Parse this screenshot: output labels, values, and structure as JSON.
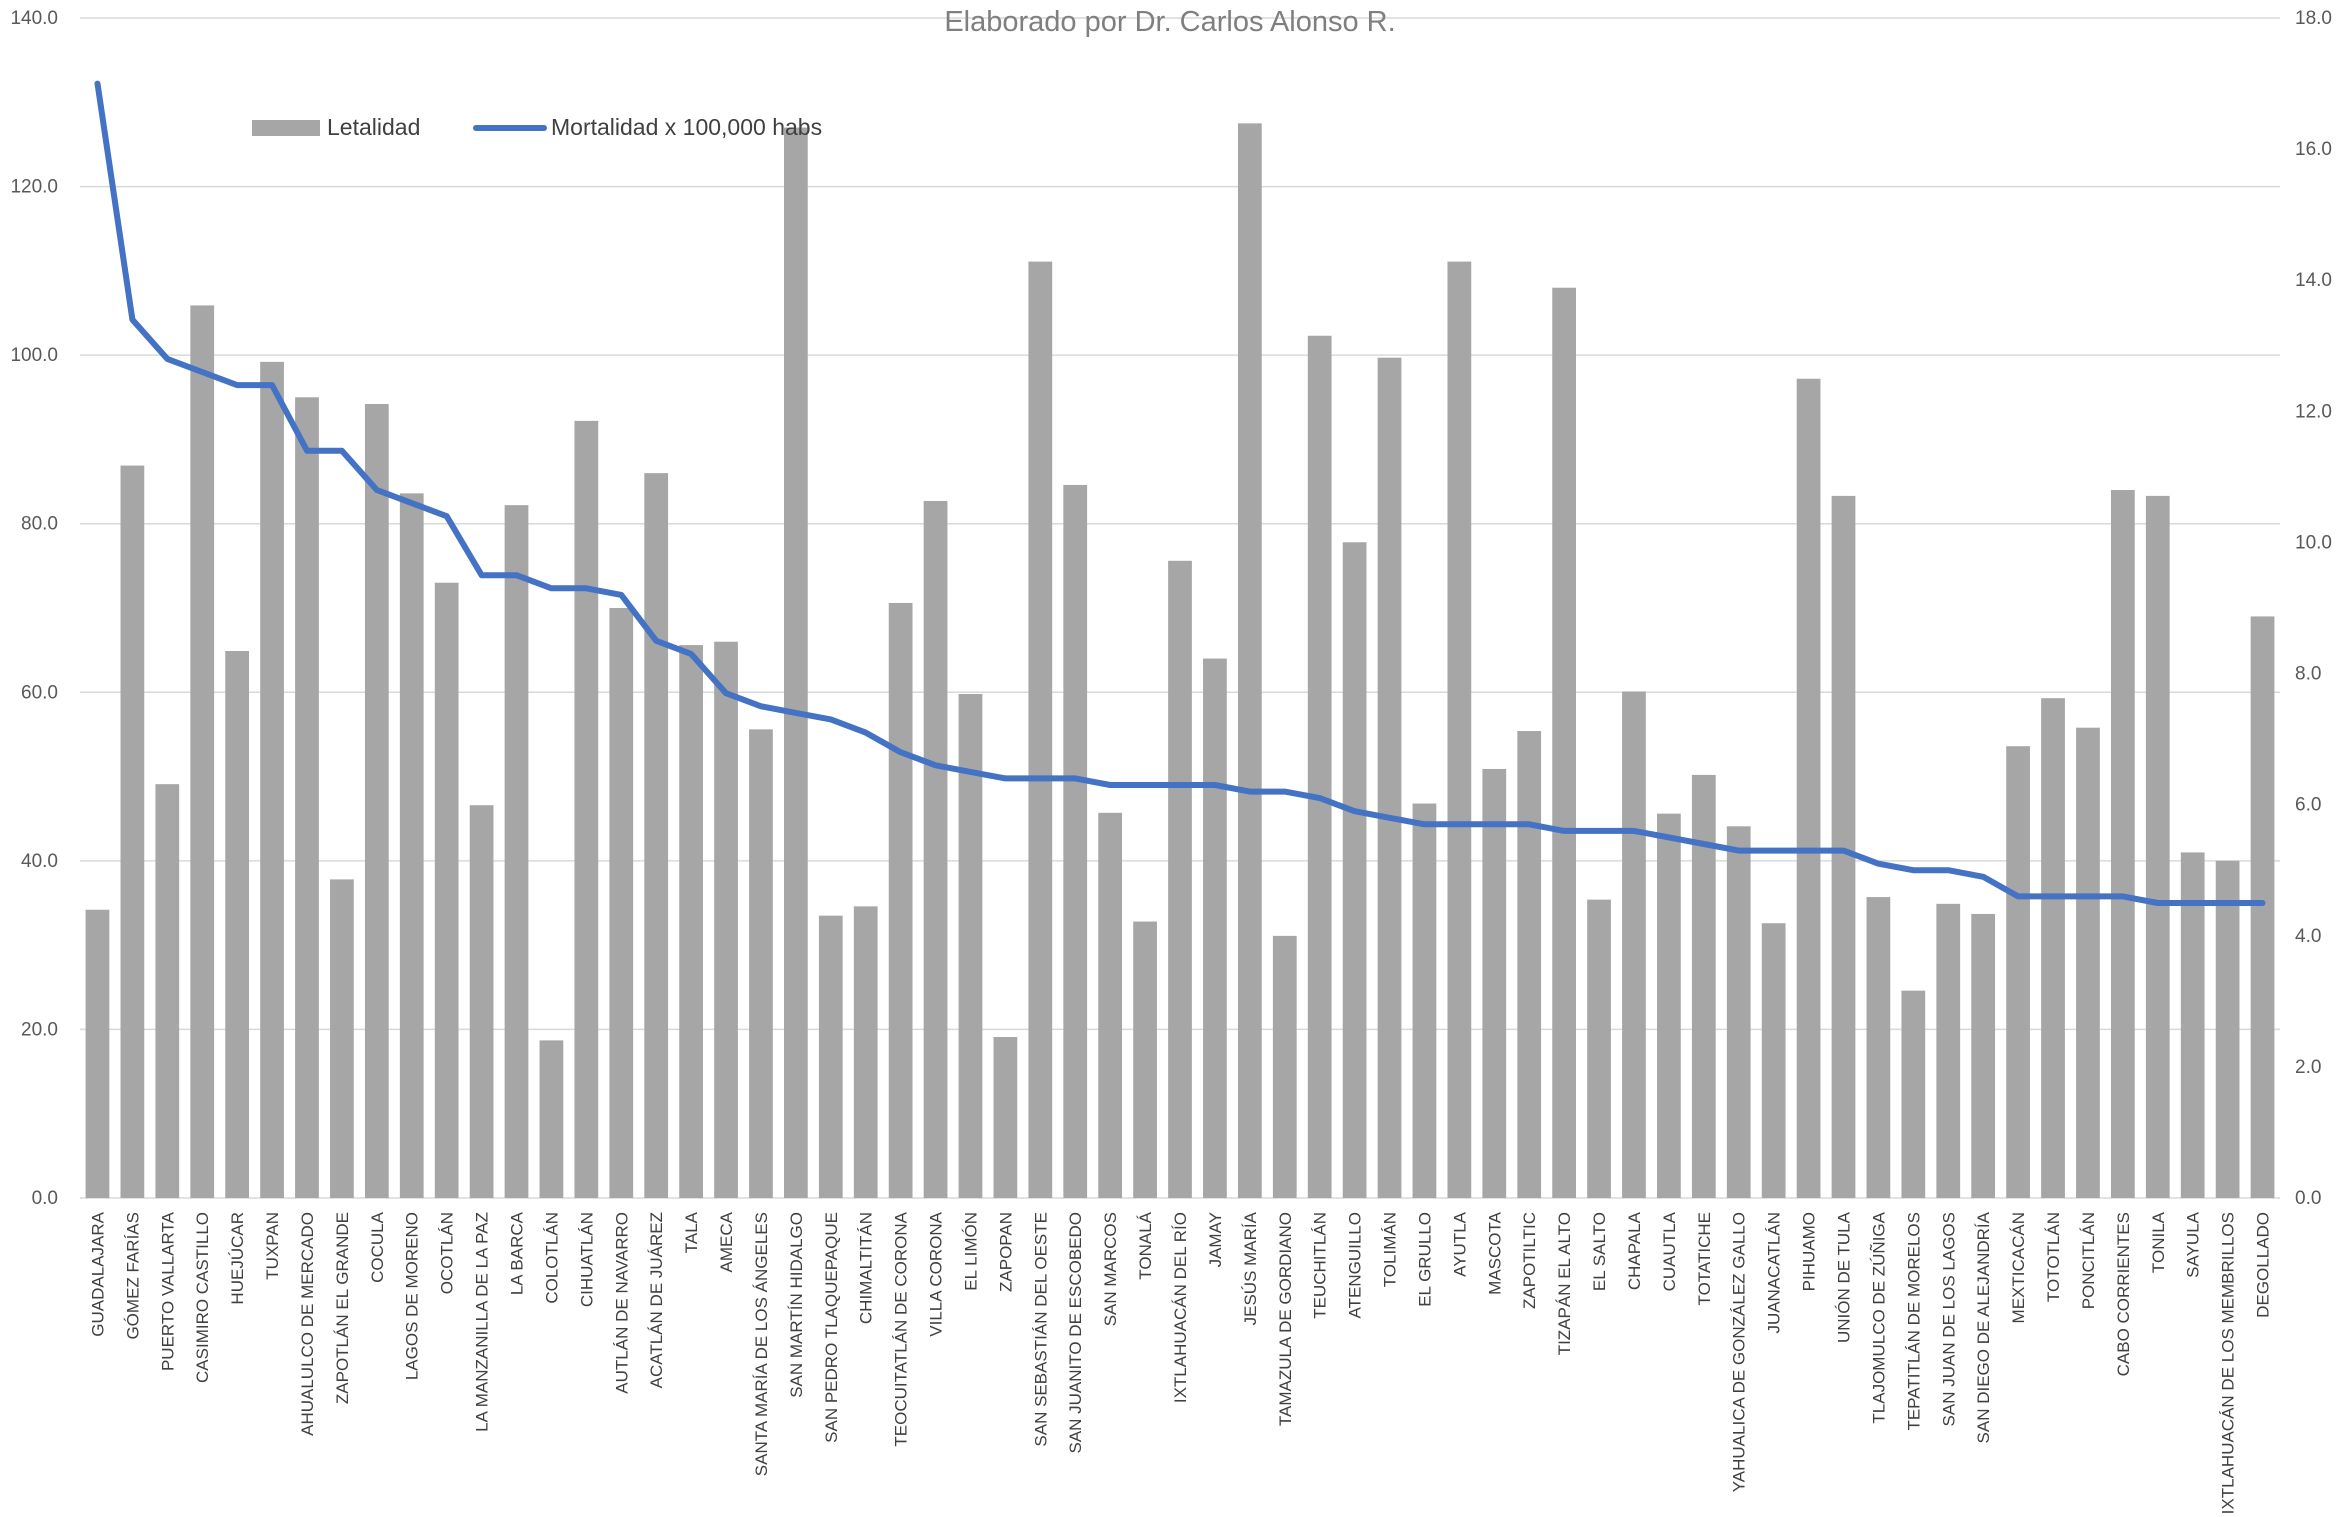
{
  "chart_data": {
    "type": "bar",
    "title": "Elaborado por Dr. Carlos Alonso R.",
    "legend_position": "top-left",
    "grid": true,
    "colors": {
      "bars": "#a6a6a6",
      "line": "#4472c4",
      "grid": "#d9d9d9",
      "text": "#595959"
    },
    "y_left": {
      "min": 0,
      "max": 140,
      "ticks": [
        "0.0",
        "20.0",
        "40.0",
        "60.0",
        "80.0",
        "100.0",
        "120.0",
        "140.0"
      ]
    },
    "y_right": {
      "min": 0,
      "max": 18,
      "ticks": [
        "0.0",
        "2.0",
        "4.0",
        "6.0",
        "8.0",
        "10.0",
        "12.0",
        "14.0",
        "16.0",
        "18.0"
      ]
    },
    "categories": [
      "GUADALAJARA",
      "GÓMEZ FARÍAS",
      "PUERTO VALLARTA",
      "CASIMIRO CASTILLO",
      "HUEJÚCAR",
      "TUXPAN",
      "AHUALULCO DE MERCADO",
      "ZAPOTLÁN EL GRANDE",
      "COCULA",
      "LAGOS DE MORENO",
      "OCOTLÁN",
      "LA MANZANILLA DE LA PAZ",
      "LA BARCA",
      "COLOTLÁN",
      "CIHUATLÁN",
      "AUTLÁN DE NAVARRO",
      "ACATLÁN DE JUÁREZ",
      "TALA",
      "AMECA",
      "SANTA MARÍA DE LOS ÁNGELES",
      "SAN MARTÍN HIDALGO",
      "SAN PEDRO TLAQUEPAQUE",
      "CHIMALTITÁN",
      "TEOCUITATLÁN DE CORONA",
      "VILLA CORONA",
      "EL LIMÓN",
      "ZAPOPAN",
      "SAN SEBASTIÁN DEL OESTE",
      "SAN JUANITO DE ESCOBEDO",
      "SAN MARCOS",
      "TONALÁ",
      "IXTLAHUACÁN DEL RÍO",
      "JAMAY",
      "JESÚS MARÍA",
      "TAMAZULA DE GORDIANO",
      "TEUCHITLÁN",
      "ATENGUILLO",
      "TOLIMÁN",
      "EL GRULLO",
      "AYUTLA",
      "MASCOTA",
      "ZAPOTILTIC",
      "TIZAPÁN EL ALTO",
      "EL SALTO",
      "CHAPALA",
      "CUAUTLA",
      "TOTATICHE",
      "YAHUALICA DE GONZÁLEZ GALLO",
      "JUANACATLÁN",
      "PIHUAMO",
      "UNIÓN DE TULA",
      "TLAJOMULCO DE ZÚÑIGA",
      "TEPATITLÁN DE MORELOS",
      "SAN JUAN DE LOS LAGOS",
      "SAN DIEGO DE ALEJANDRÍA",
      "MEXTICACÁN",
      "TOTOTLÁN",
      "PONCITLÁN",
      "CABO CORRIENTES",
      "TONILA",
      "SAYULA",
      "IXTLAHUACÁN DE LOS MEMBRILLOS",
      "DEGOLLADO"
    ],
    "series": [
      {
        "name": "Letalidad",
        "type": "bar",
        "axis": "left",
        "values": [
          34.2,
          86.9,
          49.1,
          105.9,
          64.9,
          99.2,
          95.0,
          37.8,
          94.2,
          83.6,
          73.0,
          46.6,
          82.2,
          18.7,
          92.2,
          70.0,
          86.0,
          65.6,
          66.0,
          55.6,
          127.0,
          33.5,
          34.6,
          70.6,
          82.7,
          59.8,
          19.1,
          111.1,
          84.6,
          45.7,
          32.8,
          75.6,
          64.0,
          127.5,
          31.1,
          102.3,
          77.8,
          99.7,
          46.8,
          111.1,
          50.9,
          55.4,
          108.0,
          35.4,
          60.1,
          45.6,
          50.2,
          44.1,
          32.6,
          97.2,
          83.3,
          35.7,
          24.6,
          34.9,
          33.7,
          53.6,
          59.3,
          55.8,
          84.0,
          83.3,
          41.0,
          40.0,
          69.0
        ]
      },
      {
        "name": "Mortalidad x 100,000 habs",
        "type": "line",
        "axis": "right",
        "values": [
          17.0,
          13.4,
          12.8,
          12.6,
          12.4,
          12.4,
          11.4,
          11.4,
          10.8,
          10.6,
          10.4,
          9.5,
          9.5,
          9.3,
          9.3,
          9.2,
          8.5,
          8.3,
          7.7,
          7.5,
          7.4,
          7.3,
          7.1,
          6.8,
          6.6,
          6.5,
          6.4,
          6.4,
          6.4,
          6.3,
          6.3,
          6.3,
          6.3,
          6.2,
          6.2,
          6.1,
          5.9,
          5.8,
          5.7,
          5.7,
          5.7,
          5.7,
          5.6,
          5.6,
          5.6,
          5.5,
          5.4,
          5.3,
          5.3,
          5.3,
          5.3,
          5.1,
          5.0,
          5.0,
          4.9,
          4.6,
          4.6,
          4.6,
          4.6,
          4.5,
          4.5,
          4.5,
          4.5
        ]
      }
    ]
  }
}
